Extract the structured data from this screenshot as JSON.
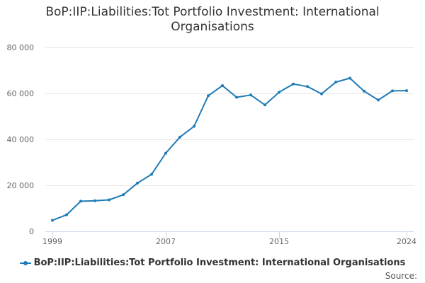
{
  "chart_data": {
    "type": "line",
    "title_lines": [
      "BoP:IIP:Liabilities:Tot Portfolio Investment: International",
      "Organisations"
    ],
    "xlabel": "",
    "ylabel": "",
    "x": [
      1999,
      2000,
      2001,
      2002,
      2003,
      2004,
      2005,
      2006,
      2007,
      2008,
      2009,
      2010,
      2011,
      2012,
      2013,
      2014,
      2015,
      2016,
      2017,
      2018,
      2019,
      2020,
      2021,
      2022,
      2023,
      2024
    ],
    "series": [
      {
        "name": "BoP:IIP:Liabilities:Tot Portfolio Investment: International Organisations",
        "values": [
          4800,
          7200,
          13100,
          13300,
          13700,
          15900,
          21000,
          24800,
          34000,
          41000,
          45700,
          59000,
          63400,
          58300,
          59300,
          55000,
          60500,
          64100,
          63000,
          59800,
          64900,
          66600,
          61000,
          57100,
          61100,
          61200
        ]
      }
    ],
    "x_ticks": [
      1999,
      2007,
      2015,
      2024
    ],
    "x_tick_labels": [
      "1999",
      "2007",
      "2015",
      "2024"
    ],
    "xlim": [
      1999,
      2024
    ],
    "y_ticks": [
      0,
      20000,
      40000,
      60000,
      80000
    ],
    "y_tick_labels": [
      "0",
      "20 000",
      "40 000",
      "60 000",
      "80 000"
    ],
    "ylim": [
      0,
      80000
    ],
    "grid": "horizontal",
    "legend_position": "bottom",
    "series_color": "#1f7bb6",
    "grid_color": "#e6e6e6",
    "axis_color": "#ccd6eb"
  },
  "credits": "Source:"
}
